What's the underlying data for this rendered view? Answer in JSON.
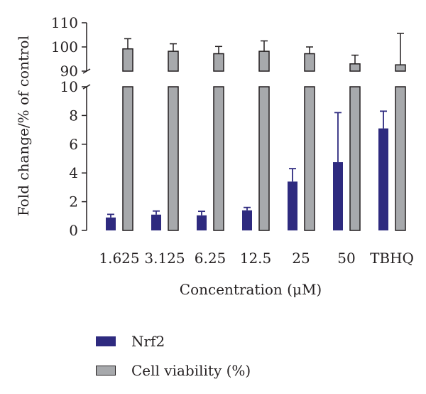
{
  "chart_data": {
    "type": "bar",
    "xlabel": "Concentration (μM)",
    "ylabel": "Fold change/% of control",
    "categories": [
      "1.625",
      "3.125",
      "6.25",
      "12.5",
      "25",
      "50",
      "TBHQ"
    ],
    "y_axis_lower": {
      "range": [
        0,
        10
      ],
      "ticks": [
        "0",
        "2",
        "4",
        "6",
        "8",
        "10"
      ]
    },
    "y_axis_upper": {
      "range": [
        90,
        110
      ],
      "ticks": [
        "90",
        "100",
        "110"
      ]
    },
    "series": [
      {
        "name": "Nrf2",
        "color": "#2e2a7f",
        "values": [
          0.9,
          1.1,
          1.05,
          1.4,
          3.4,
          4.75,
          7.1
        ],
        "errors": [
          0.22,
          0.25,
          0.28,
          0.2,
          0.9,
          3.45,
          1.2
        ]
      },
      {
        "name": "Cell viability (%)",
        "color": "#a7a9ac",
        "values": [
          99.2,
          98.2,
          97.2,
          98.2,
          97.2,
          93.0,
          92.6
        ],
        "errors": [
          4.2,
          3.1,
          3.0,
          4.3,
          2.8,
          3.6,
          13.0
        ]
      }
    ],
    "grid": false,
    "legend_position": "bottom"
  }
}
